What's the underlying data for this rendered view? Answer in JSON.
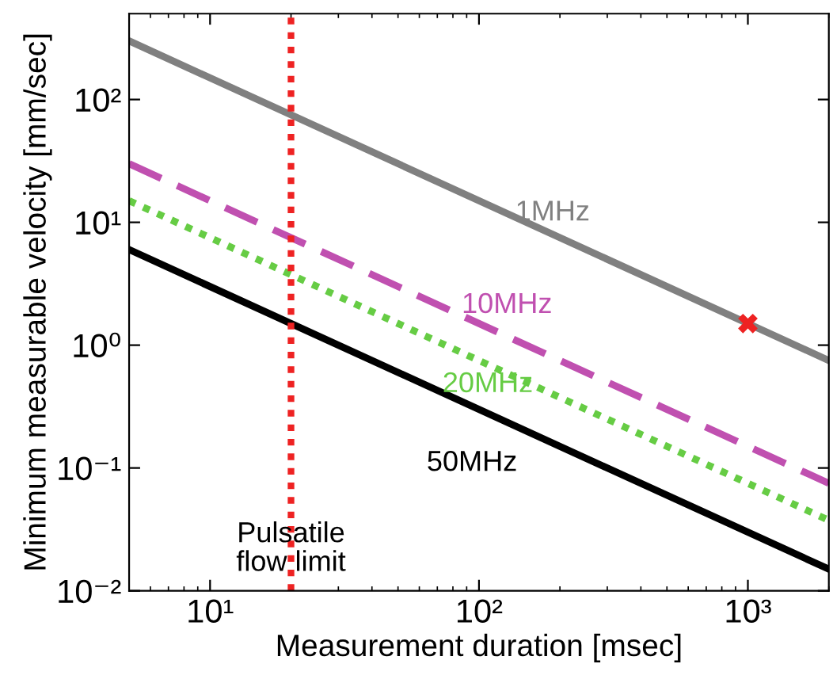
{
  "chart_data": {
    "type": "line",
    "xlabel": "Measurement duration [msec]",
    "ylabel": "Minimum measurable velocity [mm/sec]",
    "log": "xy",
    "grid": false,
    "legend": false,
    "xlim": [
      5,
      2000
    ],
    "xticks": [
      {
        "value": 10,
        "label": "10¹"
      },
      {
        "value": 100,
        "label": "10²"
      },
      {
        "value": 1000,
        "label": "10³"
      }
    ],
    "ylim": [
      0.01,
      500
    ],
    "yticks": [
      {
        "value": 0.01,
        "label": "10⁻²"
      },
      {
        "value": 0.1,
        "label": "10⁻¹"
      },
      {
        "value": 1,
        "label": "10⁰"
      },
      {
        "value": 10,
        "label": "10¹"
      },
      {
        "value": 100,
        "label": "10²"
      }
    ],
    "series": [
      {
        "name": "1MHz",
        "x": [
          5,
          2000
        ],
        "values": [
          300,
          0.75
        ],
        "color": "#808080",
        "line_style": "solid"
      },
      {
        "name": "10MHz",
        "x": [
          5,
          2000
        ],
        "values": [
          30,
          0.075
        ],
        "color": "#c050b0",
        "line_style": "dashed"
      },
      {
        "name": "20MHz",
        "x": [
          5,
          2000
        ],
        "values": [
          15,
          0.0375
        ],
        "color": "#66cc44",
        "line_style": "dotted"
      },
      {
        "name": "50MHz",
        "x": [
          5,
          2000
        ],
        "values": [
          6,
          0.015
        ],
        "color": "#000000",
        "line_style": "solid"
      },
      {
        "type": "scatter",
        "x": [
          1000
        ],
        "values": [
          1.5
        ],
        "color": "#ee2222",
        "marker": "cross"
      }
    ],
    "ref_lines": [
      {
        "axis": "x",
        "value": 20,
        "label": "Pulsatile\nflow limit",
        "color": "#ee2222",
        "line_style": "dotted"
      }
    ]
  }
}
